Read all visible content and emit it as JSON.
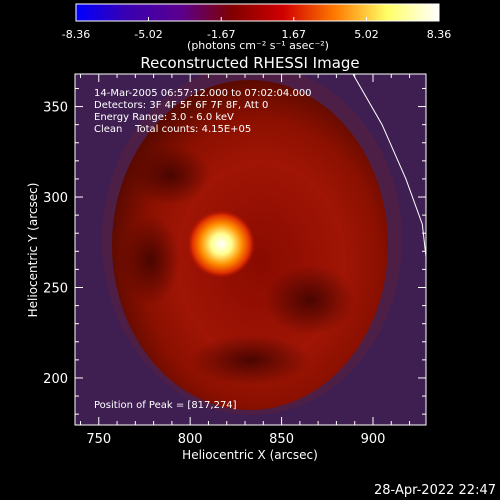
{
  "chart_data": {
    "type": "heatmap",
    "title": "Reconstructed RHESSI Image",
    "xlabel": "Heliocentric X (arcsec)",
    "ylabel": "Heliocentric Y (arcsec)",
    "xlim": [
      737,
      929
    ],
    "ylim": [
      174,
      368
    ],
    "x_ticks": [
      750,
      800,
      850,
      900
    ],
    "y_ticks": [
      200,
      250,
      300,
      350
    ],
    "colorbar": {
      "ticks": [
        "-8.36",
        "-5.02",
        "-1.67",
        "1.67",
        "5.02",
        "8.36"
      ],
      "tick_values": [
        -8.36,
        -5.02,
        -1.67,
        1.67,
        5.02,
        8.36
      ],
      "range": [
        -8.36,
        8.36
      ],
      "units_label": "(photons cm⁻² s⁻¹ asec⁻²)",
      "colors": [
        "#0000ff",
        "#3a00b0",
        "#5a0090",
        "#800000",
        "#d00000",
        "#ff7a00",
        "#ffff66",
        "#ffffff"
      ]
    },
    "annotations": [
      "14-Mar-2005 06:57:12.000 to 07:02:04.000",
      "Detectors: 3F 4F 5F 6F 7F 8F, Att 0",
      "Energy Range: 3.0 - 6.0 keV",
      "Clean    Total counts: 4.15E+05"
    ],
    "peak": {
      "label": "Position of Peak = [817,274]",
      "x": 817,
      "y": 274
    },
    "limb_curve": [
      [
        889,
        368
      ],
      [
        905,
        340
      ],
      [
        918,
        310
      ],
      [
        927,
        285
      ],
      [
        930,
        258
      ]
    ]
  },
  "footer_date": "28-Apr-2022 22:47"
}
